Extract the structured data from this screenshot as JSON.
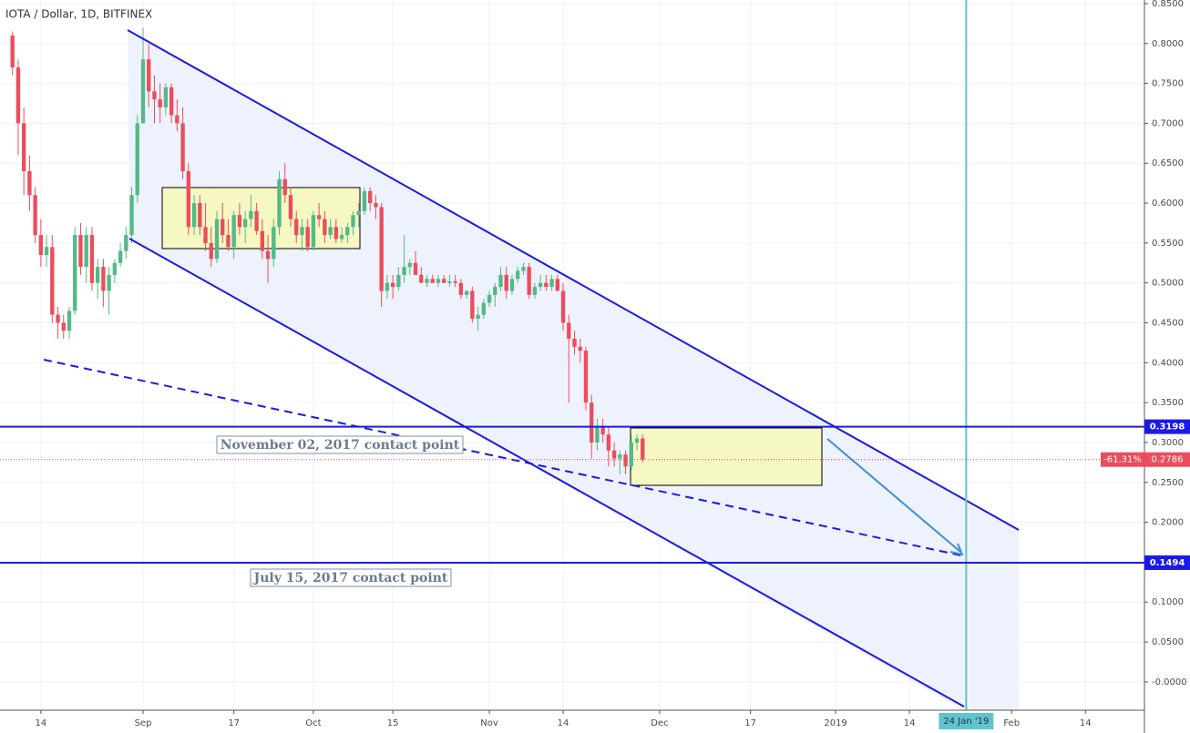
{
  "chart_data": {
    "type": "candlestick",
    "title": "IOTA / Dollar, 1D, BITFINEX",
    "up_color": "#53b987",
    "down_color": "#eb4d5c",
    "grid": true,
    "xlim": [
      -25.2,
      176.4
    ],
    "ylim": [
      -0.0355,
      0.8545
    ],
    "xticks": [
      {
        "value": -18,
        "label": "14"
      },
      {
        "value": 0,
        "label": "Sep"
      },
      {
        "value": 16,
        "label": "17"
      },
      {
        "value": 30,
        "label": "Oct"
      },
      {
        "value": 44,
        "label": "15"
      },
      {
        "value": 61,
        "label": "Nov"
      },
      {
        "value": 74,
        "label": "14"
      },
      {
        "value": 91,
        "label": "Dec"
      },
      {
        "value": 107,
        "label": "17"
      },
      {
        "value": 122,
        "label": "2019"
      },
      {
        "value": 135,
        "label": "14"
      },
      {
        "value": 153,
        "label": "Feb"
      },
      {
        "value": 166,
        "label": "14"
      }
    ],
    "yticks": [
      {
        "value": 0.85,
        "label": "0.8500"
      },
      {
        "value": 0.8,
        "label": "0.8000"
      },
      {
        "value": 0.75,
        "label": "0.7500"
      },
      {
        "value": 0.7,
        "label": "0.7000"
      },
      {
        "value": 0.65,
        "label": "0.6500"
      },
      {
        "value": 0.6,
        "label": "0.6000"
      },
      {
        "value": 0.55,
        "label": "0.5500"
      },
      {
        "value": 0.5,
        "label": "0.5000"
      },
      {
        "value": 0.45,
        "label": "0.4500"
      },
      {
        "value": 0.4,
        "label": "0.4000"
      },
      {
        "value": 0.35,
        "label": "0.3500"
      },
      {
        "value": 0.3,
        "label": "0.3000"
      },
      {
        "value": 0.25,
        "label": "0.2500"
      },
      {
        "value": 0.2,
        "label": "0.2000"
      },
      {
        "value": 0.15,
        "label": "0.1500"
      },
      {
        "value": 0.1,
        "label": "0.1000"
      },
      {
        "value": 0.05,
        "label": "0.0500"
      },
      {
        "value": 0,
        "label": "-0.0000"
      }
    ],
    "x": [
      -23,
      -22,
      -21,
      -20,
      -19,
      -18,
      -17,
      -16,
      -15,
      -14,
      -13,
      -12,
      -11,
      -10,
      -9,
      -8,
      -7,
      -6,
      -5,
      -4,
      -3,
      -2,
      -1,
      0,
      1,
      2,
      3,
      4,
      5,
      6,
      7,
      8,
      9,
      10,
      11,
      12,
      13,
      14,
      15,
      16,
      17,
      18,
      19,
      20,
      21,
      22,
      23,
      24,
      25,
      26,
      27,
      28,
      29,
      30,
      31,
      32,
      33,
      34,
      35,
      36,
      37,
      38,
      39,
      40,
      41,
      42,
      43,
      44,
      45,
      46,
      47,
      48,
      49,
      50,
      51,
      52,
      53,
      54,
      55,
      56,
      57,
      58,
      59,
      60,
      61,
      62,
      63,
      64,
      65,
      66,
      67,
      68,
      69,
      70,
      71,
      72,
      73,
      74,
      75,
      76,
      77,
      78,
      79,
      80,
      81,
      82,
      83,
      84,
      85,
      86,
      87,
      88
    ],
    "ohlc": [
      [
        0.81,
        0.815,
        0.76,
        0.77
      ],
      [
        0.77,
        0.78,
        0.66,
        0.7
      ],
      [
        0.7,
        0.72,
        0.61,
        0.64
      ],
      [
        0.64,
        0.66,
        0.59,
        0.61
      ],
      [
        0.61,
        0.62,
        0.55,
        0.56
      ],
      [
        0.56,
        0.58,
        0.52,
        0.535
      ],
      [
        0.535,
        0.56,
        0.52,
        0.545
      ],
      [
        0.545,
        0.56,
        0.45,
        0.46
      ],
      [
        0.46,
        0.47,
        0.43,
        0.45
      ],
      [
        0.45,
        0.46,
        0.43,
        0.44
      ],
      [
        0.44,
        0.47,
        0.43,
        0.465
      ],
      [
        0.465,
        0.57,
        0.46,
        0.56
      ],
      [
        0.56,
        0.575,
        0.51,
        0.52
      ],
      [
        0.52,
        0.57,
        0.5,
        0.56
      ],
      [
        0.56,
        0.57,
        0.49,
        0.5
      ],
      [
        0.5,
        0.53,
        0.48,
        0.52
      ],
      [
        0.52,
        0.53,
        0.47,
        0.49
      ],
      [
        0.49,
        0.52,
        0.46,
        0.51
      ],
      [
        0.51,
        0.53,
        0.5,
        0.525
      ],
      [
        0.525,
        0.55,
        0.52,
        0.54
      ],
      [
        0.54,
        0.57,
        0.53,
        0.56
      ],
      [
        0.56,
        0.62,
        0.55,
        0.61
      ],
      [
        0.61,
        0.71,
        0.6,
        0.7
      ],
      [
        0.7,
        0.82,
        0.7,
        0.78
      ],
      [
        0.78,
        0.8,
        0.72,
        0.74
      ],
      [
        0.74,
        0.76,
        0.7,
        0.73
      ],
      [
        0.73,
        0.75,
        0.7,
        0.72
      ],
      [
        0.72,
        0.75,
        0.71,
        0.745
      ],
      [
        0.745,
        0.75,
        0.7,
        0.71
      ],
      [
        0.71,
        0.73,
        0.69,
        0.7
      ],
      [
        0.7,
        0.72,
        0.63,
        0.64
      ],
      [
        0.64,
        0.65,
        0.56,
        0.57
      ],
      [
        0.57,
        0.61,
        0.56,
        0.6
      ],
      [
        0.6,
        0.61,
        0.56,
        0.57
      ],
      [
        0.57,
        0.6,
        0.54,
        0.55
      ],
      [
        0.55,
        0.57,
        0.52,
        0.53
      ],
      [
        0.53,
        0.59,
        0.525,
        0.58
      ],
      [
        0.58,
        0.6,
        0.55,
        0.56
      ],
      [
        0.56,
        0.58,
        0.54,
        0.545
      ],
      [
        0.545,
        0.59,
        0.53,
        0.585
      ],
      [
        0.585,
        0.6,
        0.56,
        0.57
      ],
      [
        0.57,
        0.59,
        0.55,
        0.58
      ],
      [
        0.58,
        0.61,
        0.57,
        0.59
      ],
      [
        0.59,
        0.6,
        0.56,
        0.565
      ],
      [
        0.565,
        0.58,
        0.53,
        0.54
      ],
      [
        0.54,
        0.56,
        0.5,
        0.53
      ],
      [
        0.53,
        0.58,
        0.52,
        0.57
      ],
      [
        0.57,
        0.64,
        0.56,
        0.63
      ],
      [
        0.63,
        0.65,
        0.6,
        0.61
      ],
      [
        0.61,
        0.62,
        0.57,
        0.58
      ],
      [
        0.58,
        0.59,
        0.55,
        0.56
      ],
      [
        0.56,
        0.58,
        0.54,
        0.57
      ],
      [
        0.57,
        0.58,
        0.54,
        0.545
      ],
      [
        0.545,
        0.59,
        0.54,
        0.585
      ],
      [
        0.585,
        0.6,
        0.57,
        0.58
      ],
      [
        0.58,
        0.59,
        0.55,
        0.56
      ],
      [
        0.56,
        0.58,
        0.555,
        0.57
      ],
      [
        0.57,
        0.58,
        0.55,
        0.555
      ],
      [
        0.555,
        0.57,
        0.55,
        0.56
      ],
      [
        0.56,
        0.575,
        0.55,
        0.57
      ],
      [
        0.57,
        0.59,
        0.56,
        0.585
      ],
      [
        0.585,
        0.6,
        0.57,
        0.59
      ],
      [
        0.59,
        0.62,
        0.585,
        0.615
      ],
      [
        0.615,
        0.62,
        0.59,
        0.6
      ],
      [
        0.6,
        0.61,
        0.58,
        0.595
      ],
      [
        0.595,
        0.6,
        0.47,
        0.49
      ],
      [
        0.49,
        0.51,
        0.48,
        0.5
      ],
      [
        0.5,
        0.51,
        0.48,
        0.495
      ],
      [
        0.495,
        0.52,
        0.49,
        0.51
      ],
      [
        0.51,
        0.56,
        0.5,
        0.52
      ],
      [
        0.52,
        0.53,
        0.51,
        0.525
      ],
      [
        0.525,
        0.54,
        0.51,
        0.51
      ],
      [
        0.51,
        0.52,
        0.5,
        0.5
      ],
      [
        0.5,
        0.51,
        0.495,
        0.505
      ],
      [
        0.505,
        0.51,
        0.5,
        0.5
      ],
      [
        0.5,
        0.51,
        0.495,
        0.505
      ],
      [
        0.505,
        0.51,
        0.5,
        0.5
      ],
      [
        0.5,
        0.51,
        0.495,
        0.502
      ],
      [
        0.502,
        0.51,
        0.495,
        0.5
      ],
      [
        0.5,
        0.505,
        0.48,
        0.485
      ],
      [
        0.485,
        0.49,
        0.48,
        0.49
      ],
      [
        0.49,
        0.495,
        0.45,
        0.455
      ],
      [
        0.455,
        0.47,
        0.44,
        0.46
      ],
      [
        0.46,
        0.48,
        0.455,
        0.475
      ],
      [
        0.475,
        0.49,
        0.47,
        0.485
      ],
      [
        0.485,
        0.5,
        0.47,
        0.495
      ],
      [
        0.495,
        0.52,
        0.49,
        0.51
      ],
      [
        0.51,
        0.52,
        0.48,
        0.49
      ],
      [
        0.49,
        0.51,
        0.485,
        0.505
      ],
      [
        0.505,
        0.52,
        0.5,
        0.515
      ],
      [
        0.515,
        0.525,
        0.51,
        0.52
      ],
      [
        0.52,
        0.525,
        0.48,
        0.485
      ],
      [
        0.485,
        0.5,
        0.48,
        0.495
      ],
      [
        0.495,
        0.51,
        0.49,
        0.5
      ],
      [
        0.5,
        0.51,
        0.49,
        0.495
      ],
      [
        0.495,
        0.51,
        0.49,
        0.505
      ],
      [
        0.505,
        0.51,
        0.49,
        0.49
      ],
      [
        0.49,
        0.5,
        0.44,
        0.45
      ],
      [
        0.45,
        0.46,
        0.35,
        0.43
      ],
      [
        0.43,
        0.44,
        0.41,
        0.42
      ],
      [
        0.42,
        0.43,
        0.4,
        0.415
      ],
      [
        0.415,
        0.42,
        0.34,
        0.35
      ],
      [
        0.35,
        0.36,
        0.28,
        0.3
      ],
      [
        0.3,
        0.33,
        0.29,
        0.32
      ],
      [
        0.32,
        0.33,
        0.3,
        0.31
      ],
      [
        0.31,
        0.32,
        0.27,
        0.29
      ],
      [
        0.29,
        0.3,
        0.27,
        0.28
      ],
      [
        0.28,
        0.29,
        0.26,
        0.285
      ],
      [
        0.285,
        0.29,
        0.26,
        0.27
      ],
      [
        0.27,
        0.31,
        0.265,
        0.3
      ],
      [
        0.3,
        0.31,
        0.29,
        0.305
      ],
      [
        0.305,
        0.31,
        0.275,
        0.2786
      ]
    ],
    "levels": [
      0.3198,
      0.1494
    ],
    "level_color": "#1a1ae6",
    "last_price": 0.2786,
    "last_change": "-61.31%",
    "marker_x": {
      "value": 145,
      "label": "24 Jan '19"
    },
    "annotations": [
      "November 02, 2017 contact point",
      "July 15, 2017 contact point"
    ]
  }
}
